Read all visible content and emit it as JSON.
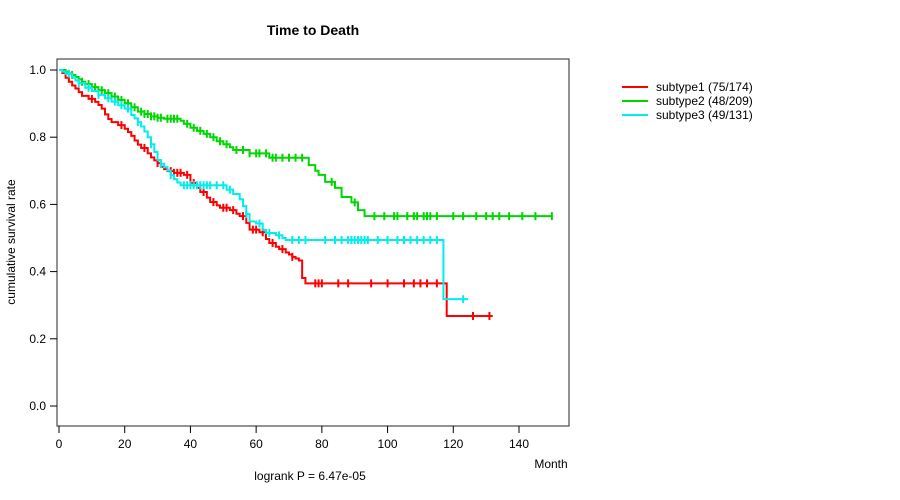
{
  "chart_data": {
    "type": "line",
    "subtype": "kaplan-meier-step-curves",
    "title": "Time to Death",
    "xlabel": "Month",
    "ylabel": "cumulative survival rate",
    "annotation": "logrank P = 6.47e-05",
    "xlim": [
      0,
      155
    ],
    "ylim": [
      0,
      1
    ],
    "grid": false,
    "legend_position": "right",
    "x_ticks": [
      0,
      20,
      40,
      60,
      80,
      100,
      120,
      140
    ],
    "y_ticks": [
      {
        "v": 0.0,
        "label": "0.0"
      },
      {
        "v": 0.2,
        "label": "0.2"
      },
      {
        "v": 0.4,
        "label": "0.4"
      },
      {
        "v": 0.6,
        "label": "0.6"
      },
      {
        "v": 0.8,
        "label": "0.8"
      },
      {
        "v": 1.0,
        "label": "1.0"
      }
    ],
    "series": [
      {
        "name": "subtype1",
        "legend_label": "subtype1 (75/174)",
        "events": "75/174",
        "color": "#FF0000",
        "end_time": 132,
        "steps": [
          [
            0,
            1.0
          ],
          [
            1,
            0.991
          ],
          [
            2,
            0.977
          ],
          [
            3,
            0.965
          ],
          [
            4,
            0.954
          ],
          [
            5,
            0.945
          ],
          [
            6,
            0.934
          ],
          [
            7,
            0.923
          ],
          [
            9,
            0.914
          ],
          [
            11,
            0.905
          ],
          [
            12,
            0.896
          ],
          [
            13,
            0.885
          ],
          [
            14,
            0.868
          ],
          [
            15,
            0.854
          ],
          [
            16,
            0.845
          ],
          [
            18,
            0.836
          ],
          [
            20,
            0.825
          ],
          [
            21,
            0.815
          ],
          [
            22,
            0.804
          ],
          [
            23,
            0.79
          ],
          [
            24,
            0.778
          ],
          [
            25,
            0.768
          ],
          [
            27,
            0.752
          ],
          [
            28,
            0.74
          ],
          [
            29,
            0.731
          ],
          [
            30,
            0.723
          ],
          [
            31,
            0.712
          ],
          [
            32,
            0.705
          ],
          [
            33,
            0.699
          ],
          [
            35,
            0.694
          ],
          [
            38,
            0.688
          ],
          [
            40,
            0.664
          ],
          [
            42,
            0.649
          ],
          [
            43,
            0.637
          ],
          [
            45,
            0.62
          ],
          [
            46,
            0.607
          ],
          [
            48,
            0.597
          ],
          [
            49,
            0.59
          ],
          [
            52,
            0.583
          ],
          [
            54,
            0.572
          ],
          [
            55,
            0.565
          ],
          [
            57,
            0.545
          ],
          [
            58,
            0.525
          ],
          [
            61,
            0.517
          ],
          [
            63,
            0.497
          ],
          [
            64,
            0.485
          ],
          [
            66,
            0.474
          ],
          [
            67,
            0.467
          ],
          [
            69,
            0.457
          ],
          [
            70,
            0.451
          ],
          [
            71,
            0.444
          ],
          [
            72,
            0.439
          ],
          [
            73,
            0.433
          ],
          [
            74,
            0.381
          ],
          [
            75,
            0.365
          ],
          [
            118,
            0.268
          ]
        ],
        "censor_times": [
          10,
          19,
          26,
          30,
          34,
          35,
          36,
          37,
          39,
          41,
          44,
          47,
          50,
          51,
          53,
          56,
          59,
          60,
          62,
          65,
          68,
          71,
          78,
          79,
          80,
          85,
          88,
          95,
          100,
          105,
          108,
          110,
          112,
          115,
          126,
          131
        ]
      },
      {
        "name": "subtype2",
        "legend_label": "subtype2 (48/209)",
        "events": "48/209",
        "color": "#00D600",
        "end_time": 150,
        "steps": [
          [
            0,
            1.0
          ],
          [
            2,
            0.995
          ],
          [
            3,
            0.99
          ],
          [
            4,
            0.985
          ],
          [
            5,
            0.979
          ],
          [
            6,
            0.972
          ],
          [
            7,
            0.965
          ],
          [
            8,
            0.958
          ],
          [
            10,
            0.949
          ],
          [
            12,
            0.94
          ],
          [
            14,
            0.931
          ],
          [
            16,
            0.921
          ],
          [
            18,
            0.911
          ],
          [
            20,
            0.901
          ],
          [
            22,
            0.889
          ],
          [
            24,
            0.876
          ],
          [
            26,
            0.869
          ],
          [
            28,
            0.862
          ],
          [
            30,
            0.858
          ],
          [
            32,
            0.855
          ],
          [
            37,
            0.849
          ],
          [
            38,
            0.84
          ],
          [
            40,
            0.828
          ],
          [
            42,
            0.819
          ],
          [
            44,
            0.81
          ],
          [
            46,
            0.8
          ],
          [
            48,
            0.788
          ],
          [
            50,
            0.779
          ],
          [
            52,
            0.77
          ],
          [
            53,
            0.762
          ],
          [
            58,
            0.752
          ],
          [
            64,
            0.739
          ],
          [
            76,
            0.717
          ],
          [
            78,
            0.7
          ],
          [
            79,
            0.688
          ],
          [
            81,
            0.667
          ],
          [
            84,
            0.649
          ],
          [
            86,
            0.622
          ],
          [
            89,
            0.606
          ],
          [
            91,
            0.583
          ],
          [
            93,
            0.565
          ]
        ],
        "censor_times": [
          4,
          7,
          9,
          11,
          13,
          15,
          17,
          19,
          21,
          23,
          25,
          26,
          27,
          28,
          29,
          30,
          31,
          33,
          34,
          35,
          36,
          39,
          41,
          43,
          45,
          47,
          49,
          51,
          54,
          56,
          58,
          60,
          61,
          63,
          65,
          66,
          68,
          70,
          72,
          74,
          83,
          90,
          96,
          99,
          102,
          103,
          106,
          108,
          109,
          111,
          112,
          113,
          115,
          120,
          123,
          127,
          130,
          132,
          134,
          137,
          141,
          145,
          150
        ]
      },
      {
        "name": "subtype3",
        "legend_label": "subtype3 (49/131)",
        "events": "49/131",
        "color": "#00EEEE",
        "end_time": 124.5,
        "steps": [
          [
            0,
            1.0
          ],
          [
            1,
            0.995
          ],
          [
            2,
            0.989
          ],
          [
            4,
            0.978
          ],
          [
            5,
            0.969
          ],
          [
            6,
            0.961
          ],
          [
            8,
            0.947
          ],
          [
            10,
            0.937
          ],
          [
            12,
            0.926
          ],
          [
            14,
            0.916
          ],
          [
            16,
            0.906
          ],
          [
            18,
            0.895
          ],
          [
            20,
            0.885
          ],
          [
            22,
            0.866
          ],
          [
            23,
            0.856
          ],
          [
            24,
            0.845
          ],
          [
            25,
            0.832
          ],
          [
            26,
            0.817
          ],
          [
            27,
            0.8
          ],
          [
            28,
            0.779
          ],
          [
            29,
            0.756
          ],
          [
            30,
            0.732
          ],
          [
            31,
            0.721
          ],
          [
            32,
            0.711
          ],
          [
            33,
            0.701
          ],
          [
            34,
            0.687
          ],
          [
            35,
            0.675
          ],
          [
            36,
            0.665
          ],
          [
            37,
            0.657
          ],
          [
            51,
            0.644
          ],
          [
            53,
            0.631
          ],
          [
            55,
            0.615
          ],
          [
            56,
            0.595
          ],
          [
            57,
            0.571
          ],
          [
            58,
            0.549
          ],
          [
            60,
            0.543
          ],
          [
            62,
            0.524
          ],
          [
            63,
            0.515
          ],
          [
            66,
            0.508
          ],
          [
            68,
            0.5
          ],
          [
            69,
            0.494
          ],
          [
            117,
            0.318
          ]
        ],
        "censor_times": [
          3,
          6,
          9,
          12,
          15,
          17,
          19,
          21,
          24,
          28,
          31,
          34,
          38,
          39,
          40,
          41,
          42,
          43,
          44,
          45,
          46,
          48,
          50,
          52,
          57,
          61,
          64,
          67,
          71,
          73,
          75,
          81,
          84,
          86,
          88,
          89,
          90,
          91,
          92,
          93,
          94,
          97,
          100,
          103,
          105,
          107,
          109,
          111,
          113,
          115,
          123
        ]
      }
    ]
  }
}
